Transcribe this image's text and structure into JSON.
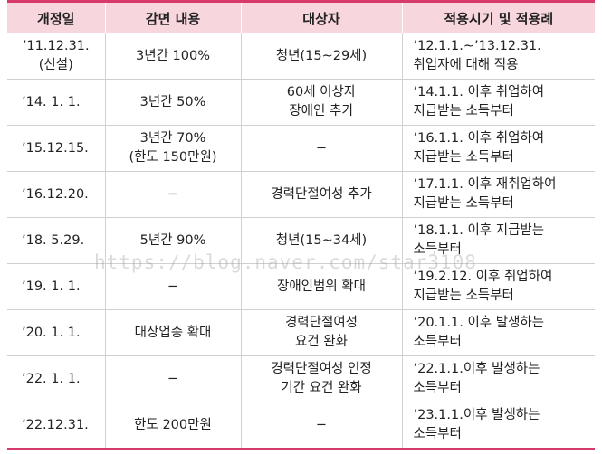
{
  "headers": [
    "개정일",
    "감면 내용",
    "대상자",
    "적용시기 및 적용례"
  ],
  "rows": [
    {
      "date": [
        "’11.12.31.",
        "(신설)"
      ],
      "content": [
        "3년간 100%"
      ],
      "target": [
        "청년(15∼29세)"
      ],
      "when": [
        "’12.1.1.∼’13.12.31.",
        "취업자에 대해 적용"
      ]
    },
    {
      "date": [
        "’14. 1. 1."
      ],
      "content": [
        "3년간 50%"
      ],
      "target": [
        "60세 이상자",
        "장애인 추가"
      ],
      "when": [
        "’14.1.1. 이후 취업하여",
        "지급받는 소득부터"
      ]
    },
    {
      "date": [
        "’15.12.15."
      ],
      "content": [
        "3년간 70%",
        "(한도 150만원)"
      ],
      "target": [
        "−"
      ],
      "when": [
        "’16.1.1. 이후 취업하여",
        "지급받는 소득부터"
      ]
    },
    {
      "date": [
        "’16.12.20."
      ],
      "content": [
        "−"
      ],
      "target": [
        "경력단절여성 추가"
      ],
      "when": [
        "’17.1.1. 이후 재취업하여",
        "지급받는 소득부터"
      ]
    },
    {
      "date": [
        "’18. 5.29."
      ],
      "content": [
        "5년간 90%"
      ],
      "target": [
        "청년(15∼34세)"
      ],
      "when": [
        "’18.1.1. 이후 지급받는",
        "소득부터"
      ]
    },
    {
      "date": [
        "’19. 1. 1."
      ],
      "content": [
        "−"
      ],
      "target": [
        "장애인범위 확대"
      ],
      "when": [
        "’19.2.12. 이후 취업하여",
        "지급받는 소득부터"
      ]
    },
    {
      "date": [
        "’20. 1. 1."
      ],
      "content": [
        "대상업종 확대"
      ],
      "target": [
        "경력단절여성",
        "요건 완화"
      ],
      "when": [
        "’20.1.1. 이후 발생하는",
        "소득부터"
      ]
    },
    {
      "date": [
        "’22. 1. 1."
      ],
      "content": [
        "−"
      ],
      "target": [
        "경력단절여성 인정",
        "기간 요건 완화"
      ],
      "when": [
        "’22.1.1.이후 발생하는",
        "소득부터"
      ]
    },
    {
      "date": [
        "’22.12.31."
      ],
      "content": [
        "한도 200만원"
      ],
      "target": [
        "−"
      ],
      "when": [
        "’23.1.1.이후 발생하는",
        "소득부터"
      ]
    }
  ],
  "watermark": "https://blog.naver.com/star3108",
  "colors": {
    "accent": "#d63a6a",
    "header_bg": "#f7d6dd"
  }
}
